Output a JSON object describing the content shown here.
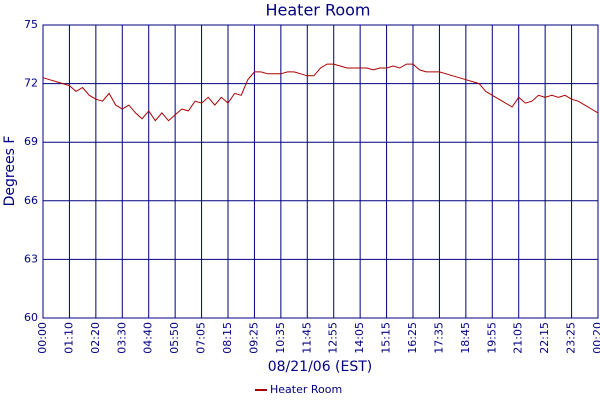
{
  "chart_data": {
    "type": "line",
    "title": "Heater Room",
    "x_label": "08/21/06 (EST)",
    "y_label": "Degrees F",
    "categories": [
      "00:00",
      null,
      null,
      null,
      "01:10",
      null,
      null,
      null,
      "02:20",
      null,
      null,
      null,
      "03:30",
      null,
      null,
      null,
      "04:40",
      null,
      null,
      null,
      "05:50",
      null,
      null,
      null,
      "07:05",
      null,
      null,
      null,
      "08:15",
      null,
      null,
      null,
      "09:25",
      null,
      null,
      null,
      "10:35",
      null,
      null,
      null,
      "11:45",
      null,
      null,
      null,
      "12:55",
      null,
      null,
      null,
      "14:05",
      null,
      null,
      null,
      "15:15",
      null,
      null,
      null,
      "16:25",
      null,
      null,
      null,
      "17:35",
      null,
      null,
      null,
      "18:45",
      null,
      null,
      null,
      "19:55",
      null,
      null,
      null,
      "21:05",
      null,
      null,
      null,
      "22:15",
      null,
      null,
      null,
      "23:25",
      null,
      null,
      null,
      "00:20"
    ],
    "series": [
      {
        "name": "Heater Room",
        "color": "#aa0000",
        "values": [
          72.3,
          72.2,
          72.1,
          72.0,
          71.9,
          71.6,
          71.8,
          71.4,
          71.2,
          71.1,
          71.5,
          70.9,
          70.7,
          70.9,
          70.5,
          70.2,
          70.6,
          70.1,
          70.5,
          70.1,
          70.4,
          70.7,
          70.6,
          71.1,
          71.0,
          71.3,
          70.9,
          71.3,
          71.0,
          71.5,
          71.4,
          72.2,
          72.6,
          72.6,
          72.5,
          72.5,
          72.5,
          72.6,
          72.6,
          72.5,
          72.4,
          72.4,
          72.8,
          73.0,
          73.0,
          72.9,
          72.8,
          72.8,
          72.8,
          72.8,
          72.7,
          72.8,
          72.8,
          72.9,
          72.8,
          73.0,
          73.0,
          72.7,
          72.6,
          72.6,
          72.6,
          72.5,
          72.4,
          72.3,
          72.2,
          72.1,
          72.0,
          71.6,
          71.4,
          71.2,
          71.0,
          70.8,
          71.3,
          71.0,
          71.1,
          71.4,
          71.3,
          71.4,
          71.3,
          71.4,
          71.2,
          71.1,
          70.9,
          70.7,
          70.5
        ]
      }
    ],
    "ylim": [
      60,
      75
    ],
    "yticks": [
      60,
      63,
      66,
      69,
      72,
      75
    ],
    "grid": true,
    "legend": "bottom"
  }
}
